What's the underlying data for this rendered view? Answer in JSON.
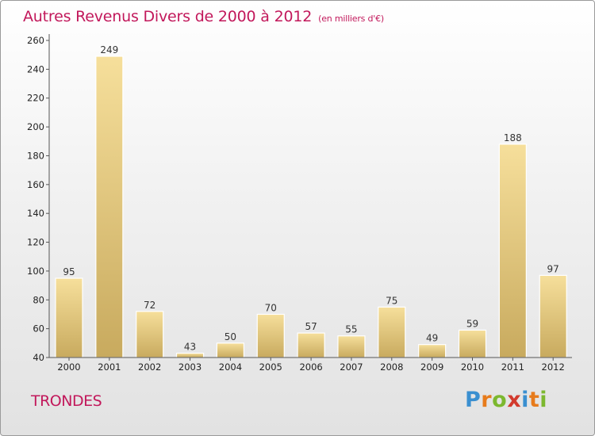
{
  "header": {
    "title": "Autres Revenus Divers de 2000 à 2012",
    "subtitle": "(en milliers d'€)"
  },
  "footer": {
    "commune": "TRONDES",
    "logo": "Proxiti"
  },
  "chart_data": {
    "type": "bar",
    "title": "Autres Revenus Divers de 2000 à 2012",
    "subtitle": "(en milliers d'€)",
    "xlabel": "",
    "ylabel": "",
    "categories": [
      "2000",
      "2001",
      "2002",
      "2003",
      "2004",
      "2005",
      "2006",
      "2007",
      "2008",
      "2009",
      "2010",
      "2011",
      "2012"
    ],
    "values": [
      95,
      249,
      72,
      43,
      50,
      70,
      57,
      55,
      75,
      49,
      59,
      188,
      97
    ],
    "ylim": [
      40,
      260
    ],
    "yticks": [
      40,
      60,
      80,
      100,
      120,
      140,
      160,
      180,
      200,
      220,
      240,
      260
    ],
    "grid": false,
    "colors": {
      "bar_light": "#f6df9b",
      "bar_dark": "#c8aa5e",
      "title": "#c2185b"
    }
  }
}
